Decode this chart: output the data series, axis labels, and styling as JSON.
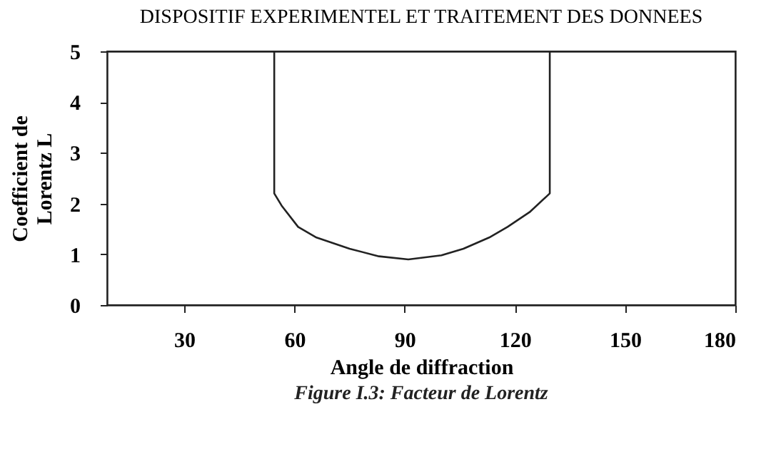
{
  "chart_data": {
    "type": "line",
    "title": "DISPOSITIF EXPERIMENTEL ET TRAITEMENT DES DONNEES",
    "xlabel": "Angle de diffraction",
    "ylabel": "Coefficient de\nLorentz  L",
    "annotations": [
      "Figure I.3: Facteur de Lorentz"
    ],
    "x": [
      54.5,
      54.5,
      56.5,
      61,
      66,
      75,
      83,
      91,
      100,
      106,
      113,
      118,
      124,
      129.5,
      129.5
    ],
    "series": [
      {
        "color": "#222222",
        "values": [
          5,
          2.2,
          1.96,
          1.54,
          1.33,
          1.11,
          0.96,
          0.9,
          0.98,
          1.11,
          1.33,
          1.54,
          1.83,
          2.2,
          5
        ]
      }
    ],
    "xlim": [
      9,
      180
    ],
    "xticks": [
      30,
      60,
      90,
      120,
      150,
      180
    ],
    "ylim": [
      0,
      5
    ],
    "yticks": [
      0,
      1,
      2,
      3,
      4,
      5
    ],
    "grid": false,
    "marker": "none",
    "line_style": "solid"
  }
}
